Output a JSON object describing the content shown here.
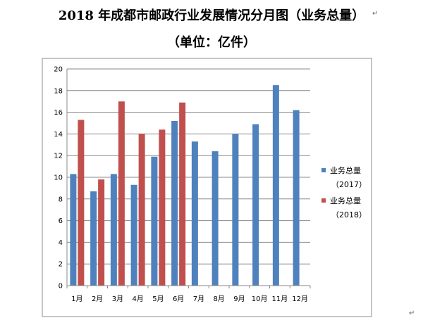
{
  "page": {
    "title_line1": "2018 年成都市邮政行业发展情况分月图（业务总量）",
    "title_line2": "（单位：亿件）",
    "paragraph_mark": "↵"
  },
  "chart_data": {
    "type": "bar",
    "title": "",
    "xlabel": "",
    "ylabel": "",
    "categories": [
      "1月",
      "2月",
      "3月",
      "4月",
      "5月",
      "6月",
      "7月",
      "8月",
      "9月",
      "10月",
      "11月",
      "12月"
    ],
    "ylim": [
      0,
      20
    ],
    "yticks": [
      0,
      2,
      4,
      6,
      8,
      10,
      12,
      14,
      16,
      18,
      20
    ],
    "grid": true,
    "legend_position": "right",
    "series": [
      {
        "name_line1": "业务总量",
        "name_line2": "（2017）",
        "color": "#4f81bd",
        "values": [
          10.3,
          8.7,
          10.3,
          9.3,
          11.9,
          15.2,
          13.3,
          12.4,
          14.0,
          14.9,
          18.5,
          16.2
        ]
      },
      {
        "name_line1": "业务总量",
        "name_line2": "（2018）",
        "color": "#c0504d",
        "values": [
          15.3,
          9.8,
          17.0,
          14.0,
          14.4,
          16.9,
          null,
          null,
          null,
          null,
          null,
          null
        ]
      }
    ]
  }
}
